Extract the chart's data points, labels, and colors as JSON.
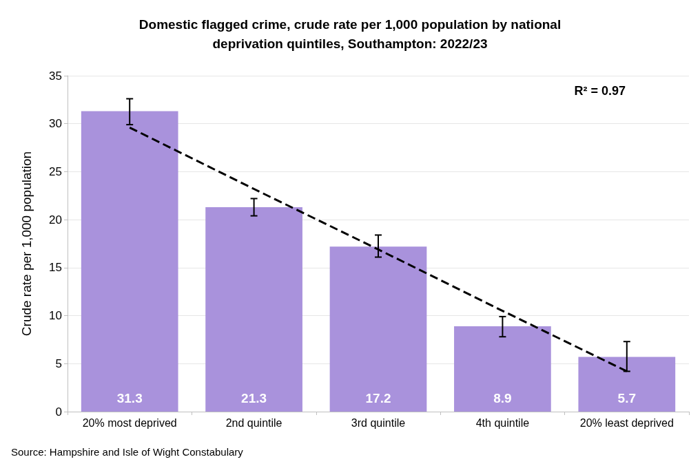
{
  "chart_data": {
    "type": "bar",
    "title": "Domestic flagged crime, crude rate per 1,000 population by national\ndeprivation quintiles, Southampton: 2022/23",
    "ylabel": "Crude rate per 1,000 population",
    "categories": [
      "20% most deprived",
      "2nd quintile",
      "3rd quintile",
      "4th quintile",
      "20% least deprived"
    ],
    "series": [
      {
        "color": "#a992dc",
        "values": [
          31.3,
          21.3,
          17.2,
          8.9,
          5.7
        ],
        "value_labels": [
          "31.3",
          "21.3",
          "17.2",
          "8.9",
          "5.7"
        ],
        "errors": [
          [
            29.9,
            32.6
          ],
          [
            20.4,
            22.2
          ],
          [
            16.1,
            18.4
          ],
          [
            7.8,
            9.9
          ],
          [
            4.2,
            7.3
          ]
        ]
      },
      {
        "type": "line",
        "color": "#000000",
        "line_style": "dashed",
        "marker": "none",
        "x": [
          "20% most deprived",
          "2nd quintile",
          "3rd quintile",
          "4th quintile",
          "20% least deprived"
        ],
        "values": [
          29.6,
          23.2,
          16.9,
          10.5,
          4.2
        ]
      }
    ],
    "ylim": [
      0,
      35
    ],
    "yticks": [
      0,
      5,
      10,
      15,
      20,
      25,
      30,
      35
    ],
    "grid": "y",
    "annotations": [
      {
        "text": "R² = 0.97"
      },
      "Source: Hampshire and Isle of Wight Constabulary"
    ]
  }
}
